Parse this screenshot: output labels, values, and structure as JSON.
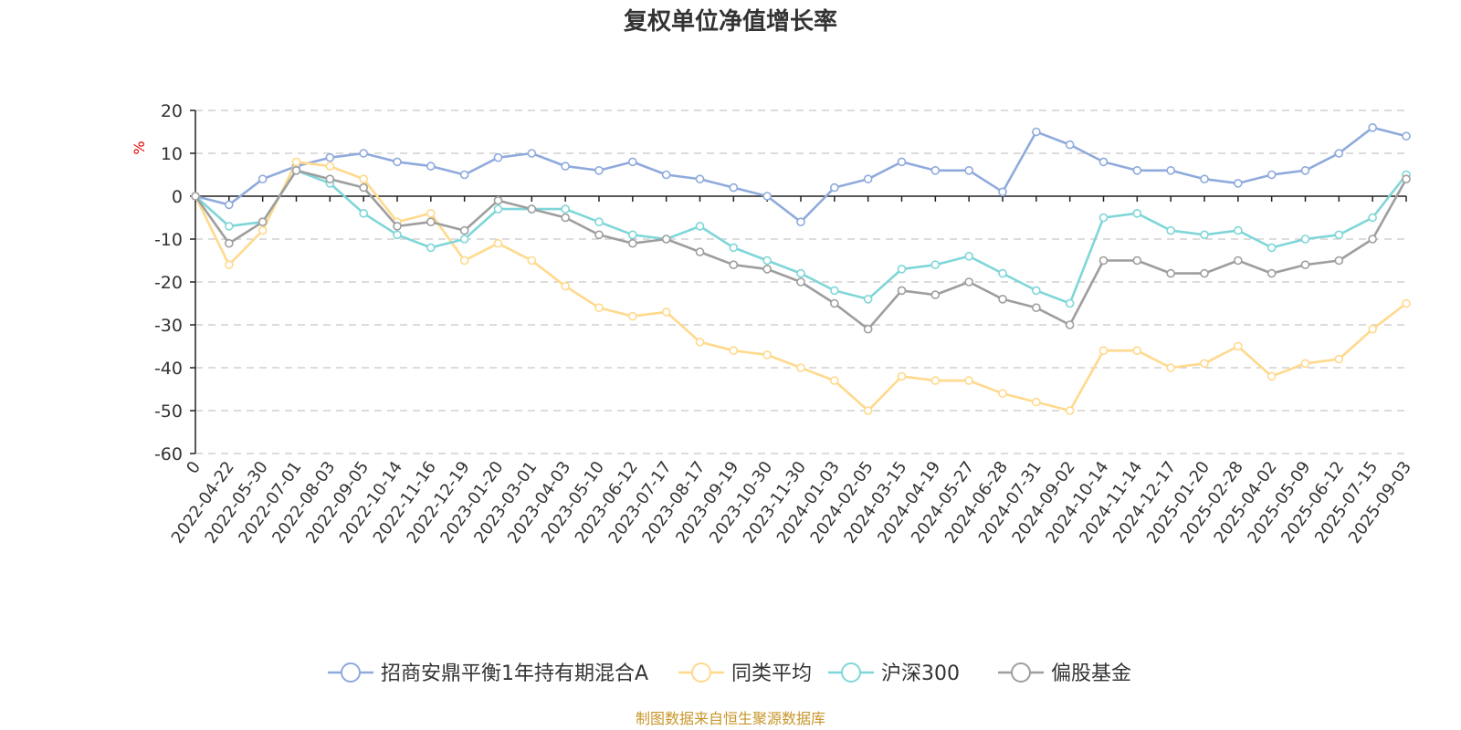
{
  "chart_data": {
    "type": "line",
    "title": "复权单位净值增长率",
    "ylabel": "%",
    "ylim": [
      -60,
      20
    ],
    "yticks": [
      20,
      10,
      0,
      -10,
      -20,
      -30,
      -40,
      -50,
      -60
    ],
    "xticks": [
      "0",
      "2022-04-22",
      "2022-05-30",
      "2022-07-01",
      "2022-08-03",
      "2022-09-05",
      "2022-10-14",
      "2022-11-16",
      "2022-12-19",
      "2023-01-20",
      "2023-03-01",
      "2023-04-03",
      "2023-05-10",
      "2023-06-12",
      "2023-07-17",
      "2023-08-17",
      "2023-09-19",
      "2023-10-30",
      "2023-11-30",
      "2024-01-03",
      "2024-02-05",
      "2024-03-15",
      "2024-04-19",
      "2024-05-27",
      "2024-06-28",
      "2024-07-31",
      "2024-09-02",
      "2024-10-14",
      "2024-11-14",
      "2024-12-17",
      "2025-01-20",
      "2025-02-28",
      "2025-04-02",
      "2025-05-09",
      "2025-06-12",
      "2025-07-15",
      "2025-09-03"
    ],
    "grid": true,
    "legend_position": "bottom-center",
    "source_note": "制图数据来自恒生聚源数据库",
    "series": [
      {
        "name": "招商安鼎平衡1年持有期混合A",
        "color": "#8faadc",
        "values": [
          0,
          -2,
          4,
          7,
          9,
          10,
          8,
          7,
          5,
          9,
          10,
          7,
          6,
          8,
          5,
          4,
          2,
          0,
          -6,
          2,
          4,
          8,
          6,
          6,
          1,
          15,
          12,
          8,
          6,
          6,
          4,
          3,
          5,
          6,
          10,
          16,
          14
        ]
      },
      {
        "name": "同类平均",
        "color": "#ffd98c",
        "values": [
          0,
          -16,
          -8,
          8,
          7,
          4,
          -6,
          -4,
          -15,
          -11,
          -15,
          -21,
          -26,
          -28,
          -27,
          -34,
          -36,
          -37,
          -40,
          -43,
          -50,
          -42,
          -43,
          -43,
          -46,
          -48,
          -50,
          -36,
          -36,
          -40,
          -39,
          -35,
          -42,
          -39,
          -38,
          -31,
          -25
        ]
      },
      {
        "name": "沪深300",
        "color": "#7fd6d8",
        "values": [
          0,
          -7,
          -6,
          6,
          3,
          -4,
          -9,
          -12,
          -10,
          -3,
          -3,
          -3,
          -6,
          -9,
          -10,
          -7,
          -12,
          -15,
          -18,
          -22,
          -24,
          -17,
          -16,
          -14,
          -18,
          -22,
          -25,
          -5,
          -4,
          -8,
          -9,
          -8,
          -12,
          -10,
          -9,
          -5,
          5
        ]
      },
      {
        "name": "偏股基金",
        "color": "#9e9e9e",
        "values": [
          0,
          -11,
          -6,
          6,
          4,
          2,
          -7,
          -6,
          -8,
          -1,
          -3,
          -5,
          -9,
          -11,
          -10,
          -13,
          -16,
          -17,
          -20,
          -25,
          -31,
          -22,
          -23,
          -20,
          -24,
          -26,
          -30,
          -15,
          -15,
          -18,
          -18,
          -15,
          -18,
          -16,
          -15,
          -10,
          4
        ]
      }
    ]
  }
}
